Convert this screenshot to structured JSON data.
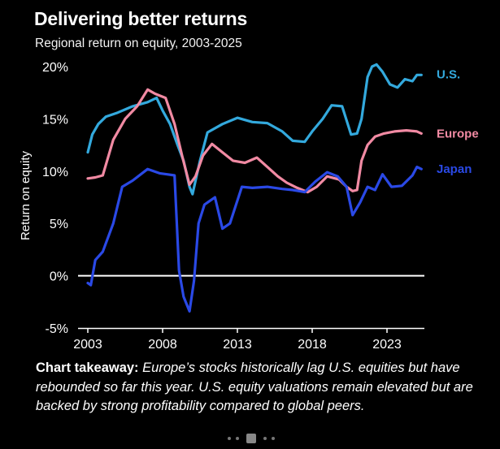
{
  "title": "Delivering better returns",
  "subtitle": "Regional return on equity, 2003-2025",
  "takeaway": {
    "lead": "Chart takeaway:",
    "body": "Europe’s stocks historically lag U.S. equities but have rebounded so far this year. U.S. equity valuations remain elevated but are backed by strong profitability compared to global peers."
  },
  "chart_data": {
    "type": "line",
    "ylabel": "Return on equity",
    "xlabel": "",
    "xlim": [
      2003,
      2025.5
    ],
    "ylim": [
      -5,
      20
    ],
    "x_ticks": [
      2003,
      2008,
      2013,
      2018,
      2023
    ],
    "x_tick_labels": [
      "2003",
      "2008",
      "2013",
      "2018",
      "2023"
    ],
    "y_ticks": [
      -5,
      0,
      5,
      10,
      15,
      20
    ],
    "y_tick_labels": [
      "-5%",
      "0%",
      "5%",
      "10%",
      "15%",
      "20%"
    ],
    "grid": false,
    "zero_line": true,
    "legend": "direct labels at right end of lines",
    "series": [
      {
        "name": "U.S.",
        "color": "#33a9dd",
        "x": [
          2003,
          2003.3,
          2003.7,
          2004.2,
          2005,
          2006,
          2007,
          2007.6,
          2008,
          2008.5,
          2009,
          2009.4,
          2009.8,
          2010,
          2010.5,
          2011,
          2012,
          2013,
          2014,
          2015,
          2016,
          2016.7,
          2017.5,
          2018,
          2018.7,
          2019.3,
          2020,
          2020.6,
          2021,
          2021.3,
          2021.5,
          2021.7,
          2022,
          2022.3,
          2022.7,
          2023.2,
          2023.7,
          2024.2,
          2024.7,
          2025,
          2025.3
        ],
        "y": [
          11.8,
          13.5,
          14.5,
          15.2,
          15.6,
          16.2,
          16.6,
          17.0,
          15.8,
          14.5,
          12.5,
          11.0,
          8.5,
          7.8,
          11.0,
          13.7,
          14.5,
          15.1,
          14.7,
          14.6,
          13.8,
          12.9,
          12.8,
          13.8,
          15.0,
          16.3,
          16.2,
          13.5,
          13.6,
          15.0,
          17.0,
          19.0,
          20.0,
          20.2,
          19.5,
          18.3,
          18.0,
          18.8,
          18.6,
          19.2,
          19.2
        ]
      },
      {
        "name": "Europe",
        "color": "#f18aa3",
        "x": [
          2003,
          2003.5,
          2004,
          2004.7,
          2005.5,
          2006.3,
          2007,
          2007.5,
          2008.2,
          2008.8,
          2009.3,
          2009.8,
          2010.2,
          2010.7,
          2011.3,
          2012,
          2012.7,
          2013.5,
          2014.3,
          2015,
          2015.7,
          2016.3,
          2017,
          2017.7,
          2018.3,
          2019,
          2019.8,
          2020.3,
          2020.7,
          2021,
          2021.3,
          2021.7,
          2022.2,
          2022.8,
          2023.5,
          2024.3,
          2025,
          2025.3
        ],
        "y": [
          9.3,
          9.4,
          9.6,
          13.0,
          15.0,
          16.2,
          17.8,
          17.4,
          17.0,
          14.5,
          11.5,
          8.7,
          9.5,
          11.5,
          12.6,
          11.8,
          11.0,
          10.8,
          11.3,
          10.4,
          9.5,
          8.9,
          8.4,
          8.0,
          8.5,
          9.5,
          9.2,
          8.5,
          8.1,
          8.2,
          11.0,
          12.5,
          13.3,
          13.6,
          13.8,
          13.9,
          13.8,
          13.6
        ]
      },
      {
        "name": "Japan",
        "color": "#2a49e6",
        "x": [
          2003,
          2003.2,
          2003.5,
          2004,
          2004.7,
          2005.3,
          2006,
          2007,
          2007.8,
          2008.3,
          2008.8,
          2009.1,
          2009.4,
          2009.8,
          2010.1,
          2010.4,
          2010.8,
          2011.5,
          2012,
          2012.5,
          2013.3,
          2014,
          2015,
          2016,
          2016.7,
          2017.5,
          2018.2,
          2019,
          2019.7,
          2020.3,
          2020.7,
          2021.2,
          2021.7,
          2022.2,
          2022.7,
          2023.3,
          2024,
          2024.7,
          2025,
          2025.3
        ],
        "y": [
          -0.7,
          -0.9,
          1.5,
          2.3,
          5.0,
          8.5,
          9.1,
          10.2,
          9.8,
          9.7,
          9.6,
          0.5,
          -2.0,
          -3.4,
          -0.5,
          5.0,
          6.8,
          7.5,
          4.5,
          5.0,
          8.5,
          8.4,
          8.5,
          8.3,
          8.2,
          8.0,
          9.0,
          9.9,
          9.5,
          8.5,
          5.8,
          7.0,
          8.5,
          8.2,
          9.7,
          8.5,
          8.6,
          9.6,
          10.4,
          10.2
        ]
      }
    ]
  }
}
